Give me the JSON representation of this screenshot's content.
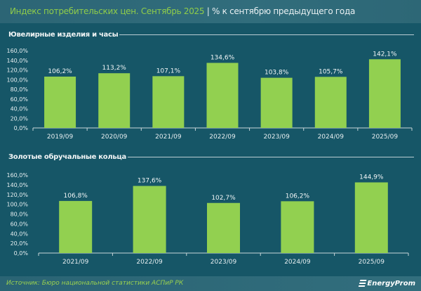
{
  "header": {
    "title": "Индекс потребительских цен. Сентябрь 2025",
    "separator": "|",
    "subtitle": "% к сентябрю предыдущего года"
  },
  "colors": {
    "bar": "#92d050",
    "background": "#165667",
    "title": "#8fcc4a"
  },
  "chart_data": [
    {
      "type": "bar",
      "title": "Ювелирные изделия и часы",
      "categories": [
        "2019/09",
        "2020/09",
        "2021/09",
        "2022/09",
        "2023/09",
        "2024/09",
        "2025/09"
      ],
      "values": [
        106.2,
        113.2,
        107.1,
        134.6,
        103.8,
        105.7,
        142.1
      ],
      "labels": [
        "106,2%",
        "113,2%",
        "107,1%",
        "134,6%",
        "103,8%",
        "105,7%",
        "142,1%"
      ],
      "yticks": [
        "0,0%",
        "20,0%",
        "40,0%",
        "60,0%",
        "80,0%",
        "100,0%",
        "120,0%",
        "140,0%",
        "160,0%"
      ],
      "ylim": [
        0,
        160
      ],
      "grid": false
    },
    {
      "type": "bar",
      "title": "Золотые обручальные кольца",
      "categories": [
        "2021/09",
        "2022/09",
        "2023/09",
        "2024/09",
        "2025/09"
      ],
      "values": [
        106.8,
        137.6,
        102.7,
        106.2,
        144.9
      ],
      "labels": [
        "106,8%",
        "137,6%",
        "102,7%",
        "106,2%",
        "144,9%"
      ],
      "yticks": [
        "0,0%",
        "20,0%",
        "40,0%",
        "60,0%",
        "80,0%",
        "100,0%",
        "120,0%",
        "140,0%",
        "160,0%"
      ],
      "ylim": [
        0,
        160
      ],
      "grid": false
    }
  ],
  "footer": {
    "source": "Источник: Бюро национальной статистики АСПиР РК",
    "logo": "EnergyProm"
  }
}
